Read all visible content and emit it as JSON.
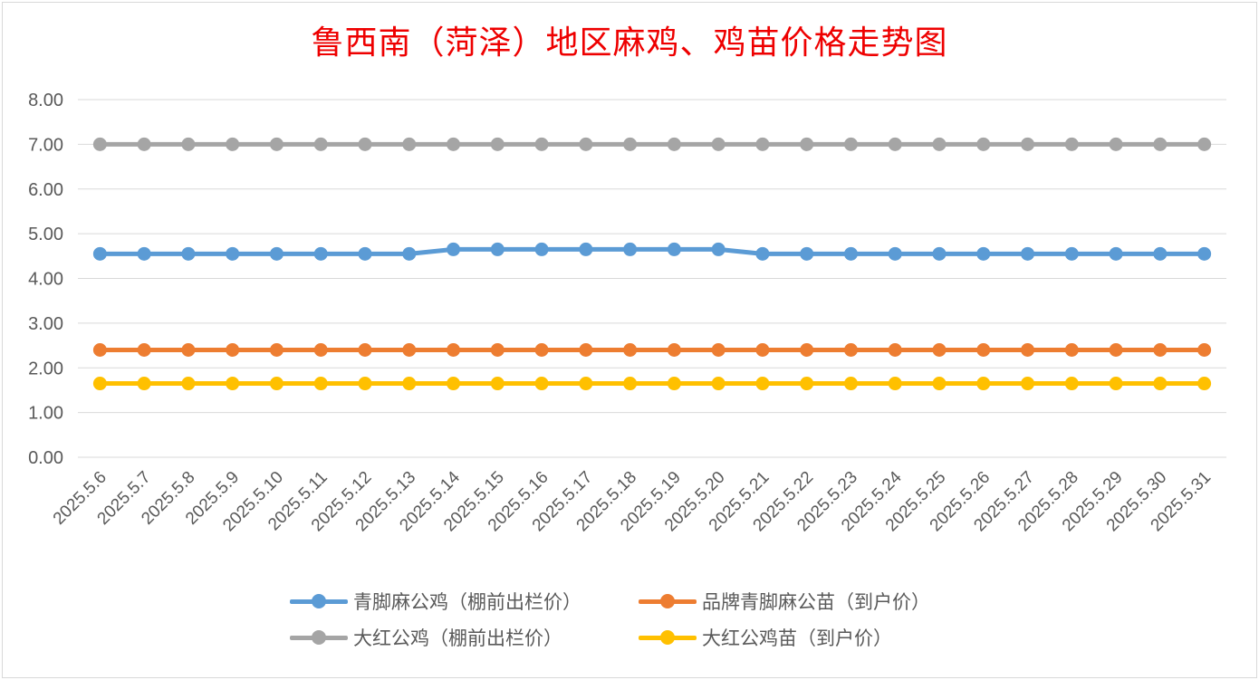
{
  "chart_data": {
    "type": "line",
    "title": "鲁西南（菏泽）地区麻鸡、鸡苗价格走势图",
    "xlabel": "",
    "ylabel": "",
    "ylim": [
      0,
      8
    ],
    "yticks": [
      "0.00",
      "1.00",
      "2.00",
      "3.00",
      "4.00",
      "5.00",
      "6.00",
      "7.00",
      "8.00"
    ],
    "grid": true,
    "legend_position": "bottom",
    "categories": [
      "2025.5.6",
      "2025.5.7",
      "2025.5.8",
      "2025.5.9",
      "2025.5.10",
      "2025.5.11",
      "2025.5.12",
      "2025.5.13",
      "2025.5.14",
      "2025.5.15",
      "2025.5.16",
      "2025.5.17",
      "2025.5.18",
      "2025.5.19",
      "2025.5.20",
      "2025.5.21",
      "2025.5.22",
      "2025.5.23",
      "2025.5.24",
      "2025.5.25",
      "2025.5.26",
      "2025.5.27",
      "2025.5.28",
      "2025.5.29",
      "2025.5.30",
      "2025.5.31"
    ],
    "series": [
      {
        "name": "青脚麻公鸡（棚前出栏价）",
        "color": "#5b9bd5",
        "values": [
          4.55,
          4.55,
          4.55,
          4.55,
          4.55,
          4.55,
          4.55,
          4.55,
          4.65,
          4.65,
          4.65,
          4.65,
          4.65,
          4.65,
          4.65,
          4.55,
          4.55,
          4.55,
          4.55,
          4.55,
          4.55,
          4.55,
          4.55,
          4.55,
          4.55,
          4.55
        ]
      },
      {
        "name": "品牌青脚麻公苗（到户价）",
        "color": "#ed7d31",
        "values": [
          2.4,
          2.4,
          2.4,
          2.4,
          2.4,
          2.4,
          2.4,
          2.4,
          2.4,
          2.4,
          2.4,
          2.4,
          2.4,
          2.4,
          2.4,
          2.4,
          2.4,
          2.4,
          2.4,
          2.4,
          2.4,
          2.4,
          2.4,
          2.4,
          2.4,
          2.4
        ]
      },
      {
        "name": "大红公鸡（棚前出栏价）",
        "color": "#a5a5a5",
        "values": [
          7.0,
          7.0,
          7.0,
          7.0,
          7.0,
          7.0,
          7.0,
          7.0,
          7.0,
          7.0,
          7.0,
          7.0,
          7.0,
          7.0,
          7.0,
          7.0,
          7.0,
          7.0,
          7.0,
          7.0,
          7.0,
          7.0,
          7.0,
          7.0,
          7.0,
          7.0
        ]
      },
      {
        "name": "大红公鸡苗（到户价）",
        "color": "#ffc000",
        "values": [
          1.65,
          1.65,
          1.65,
          1.65,
          1.65,
          1.65,
          1.65,
          1.65,
          1.65,
          1.65,
          1.65,
          1.65,
          1.65,
          1.65,
          1.65,
          1.65,
          1.65,
          1.65,
          1.65,
          1.65,
          1.65,
          1.65,
          1.65,
          1.65,
          1.65,
          1.65
        ]
      }
    ]
  }
}
